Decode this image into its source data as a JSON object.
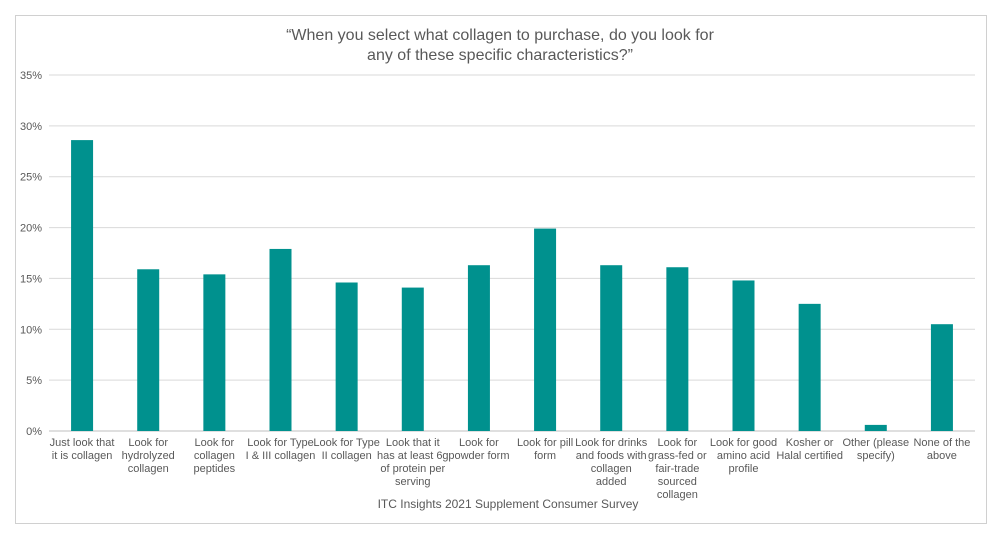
{
  "chart_data": {
    "type": "bar",
    "title": [
      "“When you select what collagen to purchase, do you look for",
      "any of these specific characteristics?”"
    ],
    "xlabel": "ITC Insights 2021 Supplement Consumer Survey",
    "ylabel": "",
    "ylim": [
      0,
      35
    ],
    "yticks": [
      "0%",
      "5%",
      "10%",
      "15%",
      "20%",
      "25%",
      "30%",
      "35%"
    ],
    "grid": true,
    "color": "#00918E",
    "categories": [
      [
        "Just look that",
        "it is collagen"
      ],
      [
        "Look for",
        "hydrolyzed",
        "collagen"
      ],
      [
        "Look for",
        "collagen",
        "peptides"
      ],
      [
        "Look for Type",
        "I & III collagen"
      ],
      [
        "Look for Type",
        "II collagen"
      ],
      [
        "Look that it",
        "has at least 6g",
        "of protein per",
        "serving"
      ],
      [
        "Look for",
        "powder form"
      ],
      [
        "Look for pill",
        "form"
      ],
      [
        "Look for drinks",
        "and foods with",
        "collagen",
        "added"
      ],
      [
        "Look for",
        "grass-fed or",
        "fair-trade",
        "sourced",
        "collagen"
      ],
      [
        "Look for good",
        "amino acid",
        "profile"
      ],
      [
        "Kosher or",
        "Halal certified"
      ],
      [
        "Other (please",
        "specify)"
      ],
      [
        "None of the",
        "above"
      ]
    ],
    "values": [
      28.6,
      15.9,
      15.4,
      17.9,
      14.6,
      14.1,
      16.3,
      19.9,
      16.3,
      16.1,
      14.8,
      12.5,
      0.6,
      10.5
    ]
  }
}
